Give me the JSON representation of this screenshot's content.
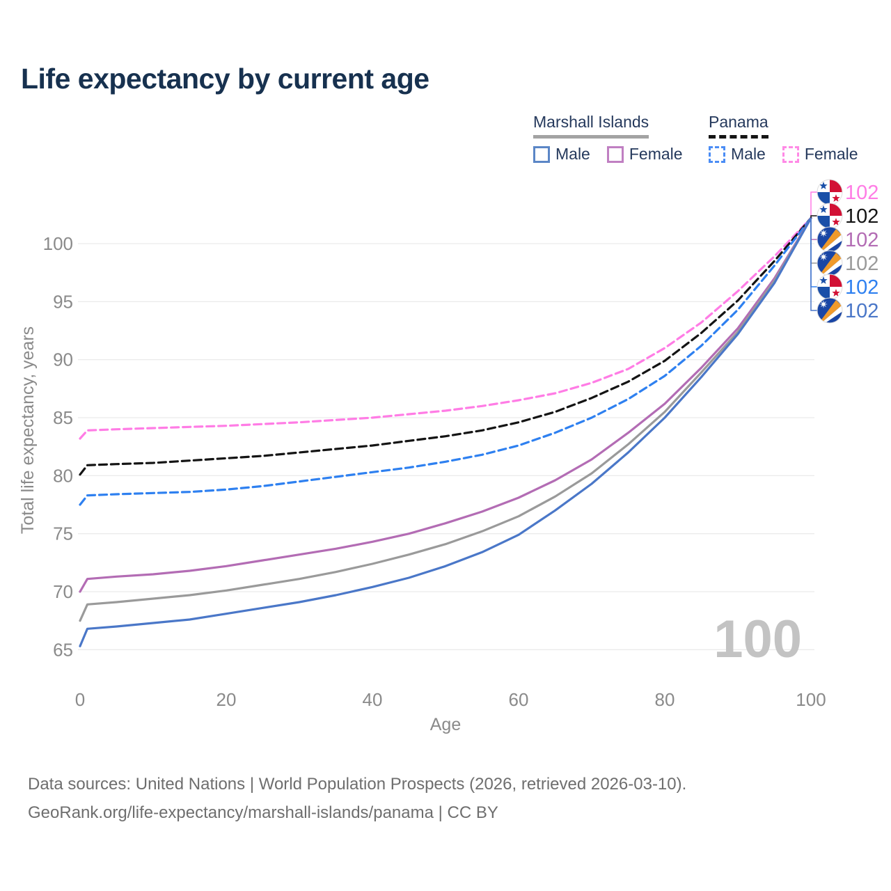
{
  "title": "Life expectancy by current age",
  "legend": {
    "groups": [
      {
        "name": "Marshall Islands",
        "style": "solid",
        "items": [
          {
            "label": "Male",
            "color": "#4a77c8"
          },
          {
            "label": "Female",
            "color": "#c07fc2"
          }
        ]
      },
      {
        "name": "Panama",
        "style": "dashed",
        "items": [
          {
            "label": "Male",
            "color": "#4b8df5"
          },
          {
            "label": "Female",
            "color": "#ff8ae6"
          }
        ]
      }
    ]
  },
  "chart_data": {
    "type": "line",
    "title": "Life expectancy by current age",
    "xlabel": "Age",
    "ylabel": "Total life expectancy, years",
    "xlim": [
      0,
      100
    ],
    "ylim": [
      63,
      103
    ],
    "x_ticks": [
      0,
      20,
      40,
      60,
      80,
      100
    ],
    "y_ticks": [
      65,
      70,
      75,
      80,
      85,
      90,
      95,
      100
    ],
    "grid": "horizontal",
    "legend_position": "top-right",
    "x": [
      0,
      1,
      5,
      10,
      15,
      20,
      25,
      30,
      35,
      40,
      45,
      50,
      55,
      60,
      65,
      70,
      75,
      80,
      85,
      90,
      95,
      100
    ],
    "series": [
      {
        "name": "Panama Female",
        "country": "Panama",
        "sex": "Female",
        "color": "#ff7ce5",
        "dash": true,
        "values": [
          83.2,
          83.9,
          84.0,
          84.1,
          84.2,
          84.3,
          84.45,
          84.6,
          84.8,
          85.0,
          85.3,
          85.6,
          86.0,
          86.5,
          87.1,
          88.0,
          89.2,
          91.0,
          93.2,
          95.9,
          98.9,
          102.2
        ]
      },
      {
        "name": "Panama Total",
        "country": "Panama",
        "sex": "Total",
        "color": "#141414",
        "dash": true,
        "values": [
          80.1,
          80.9,
          81.0,
          81.1,
          81.3,
          81.5,
          81.7,
          82.0,
          82.3,
          82.6,
          83.0,
          83.4,
          83.9,
          84.6,
          85.5,
          86.7,
          88.1,
          89.9,
          92.3,
          95.1,
          98.5,
          102.2
        ]
      },
      {
        "name": "Panama Male",
        "country": "Panama",
        "sex": "Male",
        "color": "#2e80f0",
        "dash": true,
        "values": [
          77.5,
          78.3,
          78.4,
          78.5,
          78.6,
          78.8,
          79.1,
          79.5,
          79.9,
          80.3,
          80.7,
          81.2,
          81.8,
          82.6,
          83.7,
          85.0,
          86.6,
          88.6,
          91.2,
          94.3,
          98.1,
          102.2
        ]
      },
      {
        "name": "Marshall Islands Female",
        "country": "Marshall Islands",
        "sex": "Female",
        "color": "#b36cb4",
        "dash": false,
        "values": [
          70.0,
          71.1,
          71.3,
          71.5,
          71.8,
          72.2,
          72.7,
          73.2,
          73.7,
          74.3,
          75.0,
          75.9,
          76.9,
          78.1,
          79.6,
          81.4,
          83.7,
          86.2,
          89.3,
          92.7,
          97.0,
          102.2
        ]
      },
      {
        "name": "Marshall Islands Total",
        "country": "Marshall Islands",
        "sex": "Total",
        "color": "#9a9a9a",
        "dash": false,
        "values": [
          67.5,
          68.9,
          69.1,
          69.4,
          69.7,
          70.1,
          70.6,
          71.1,
          71.7,
          72.4,
          73.2,
          74.1,
          75.2,
          76.5,
          78.2,
          80.2,
          82.7,
          85.5,
          88.9,
          92.4,
          96.8,
          102.2
        ]
      },
      {
        "name": "Marshall Islands Male",
        "country": "Marshall Islands",
        "sex": "Male",
        "color": "#4a77c8",
        "dash": false,
        "values": [
          65.3,
          66.8,
          67.0,
          67.3,
          67.6,
          68.1,
          68.6,
          69.1,
          69.7,
          70.4,
          71.2,
          72.2,
          73.4,
          74.9,
          77.0,
          79.3,
          82.0,
          85.0,
          88.5,
          92.2,
          96.6,
          102.2
        ]
      }
    ],
    "end_labels": [
      {
        "value": "102",
        "color": "#ff7ce5",
        "flag": "panama",
        "series": "Panama Female"
      },
      {
        "value": "102",
        "color": "#141414",
        "flag": "panama",
        "series": "Panama Total"
      },
      {
        "value": "102",
        "color": "#b36cb4",
        "flag": "marshall",
        "series": "Marshall Islands Female"
      },
      {
        "value": "102",
        "color": "#9a9a9a",
        "flag": "marshall",
        "series": "Marshall Islands Total"
      },
      {
        "value": "102",
        "color": "#2e80f0",
        "flag": "panama",
        "series": "Panama Male"
      },
      {
        "value": "102",
        "color": "#4a77c8",
        "flag": "marshall",
        "series": "Marshall Islands Male"
      }
    ]
  },
  "age_indicator": "100",
  "footer": {
    "line1": "Data sources: United Nations | World Population Prospects (2026, retrieved 2026-03-10).",
    "line2": "GeoRank.org/life-expectancy/marshall-islands/panama | CC BY"
  }
}
